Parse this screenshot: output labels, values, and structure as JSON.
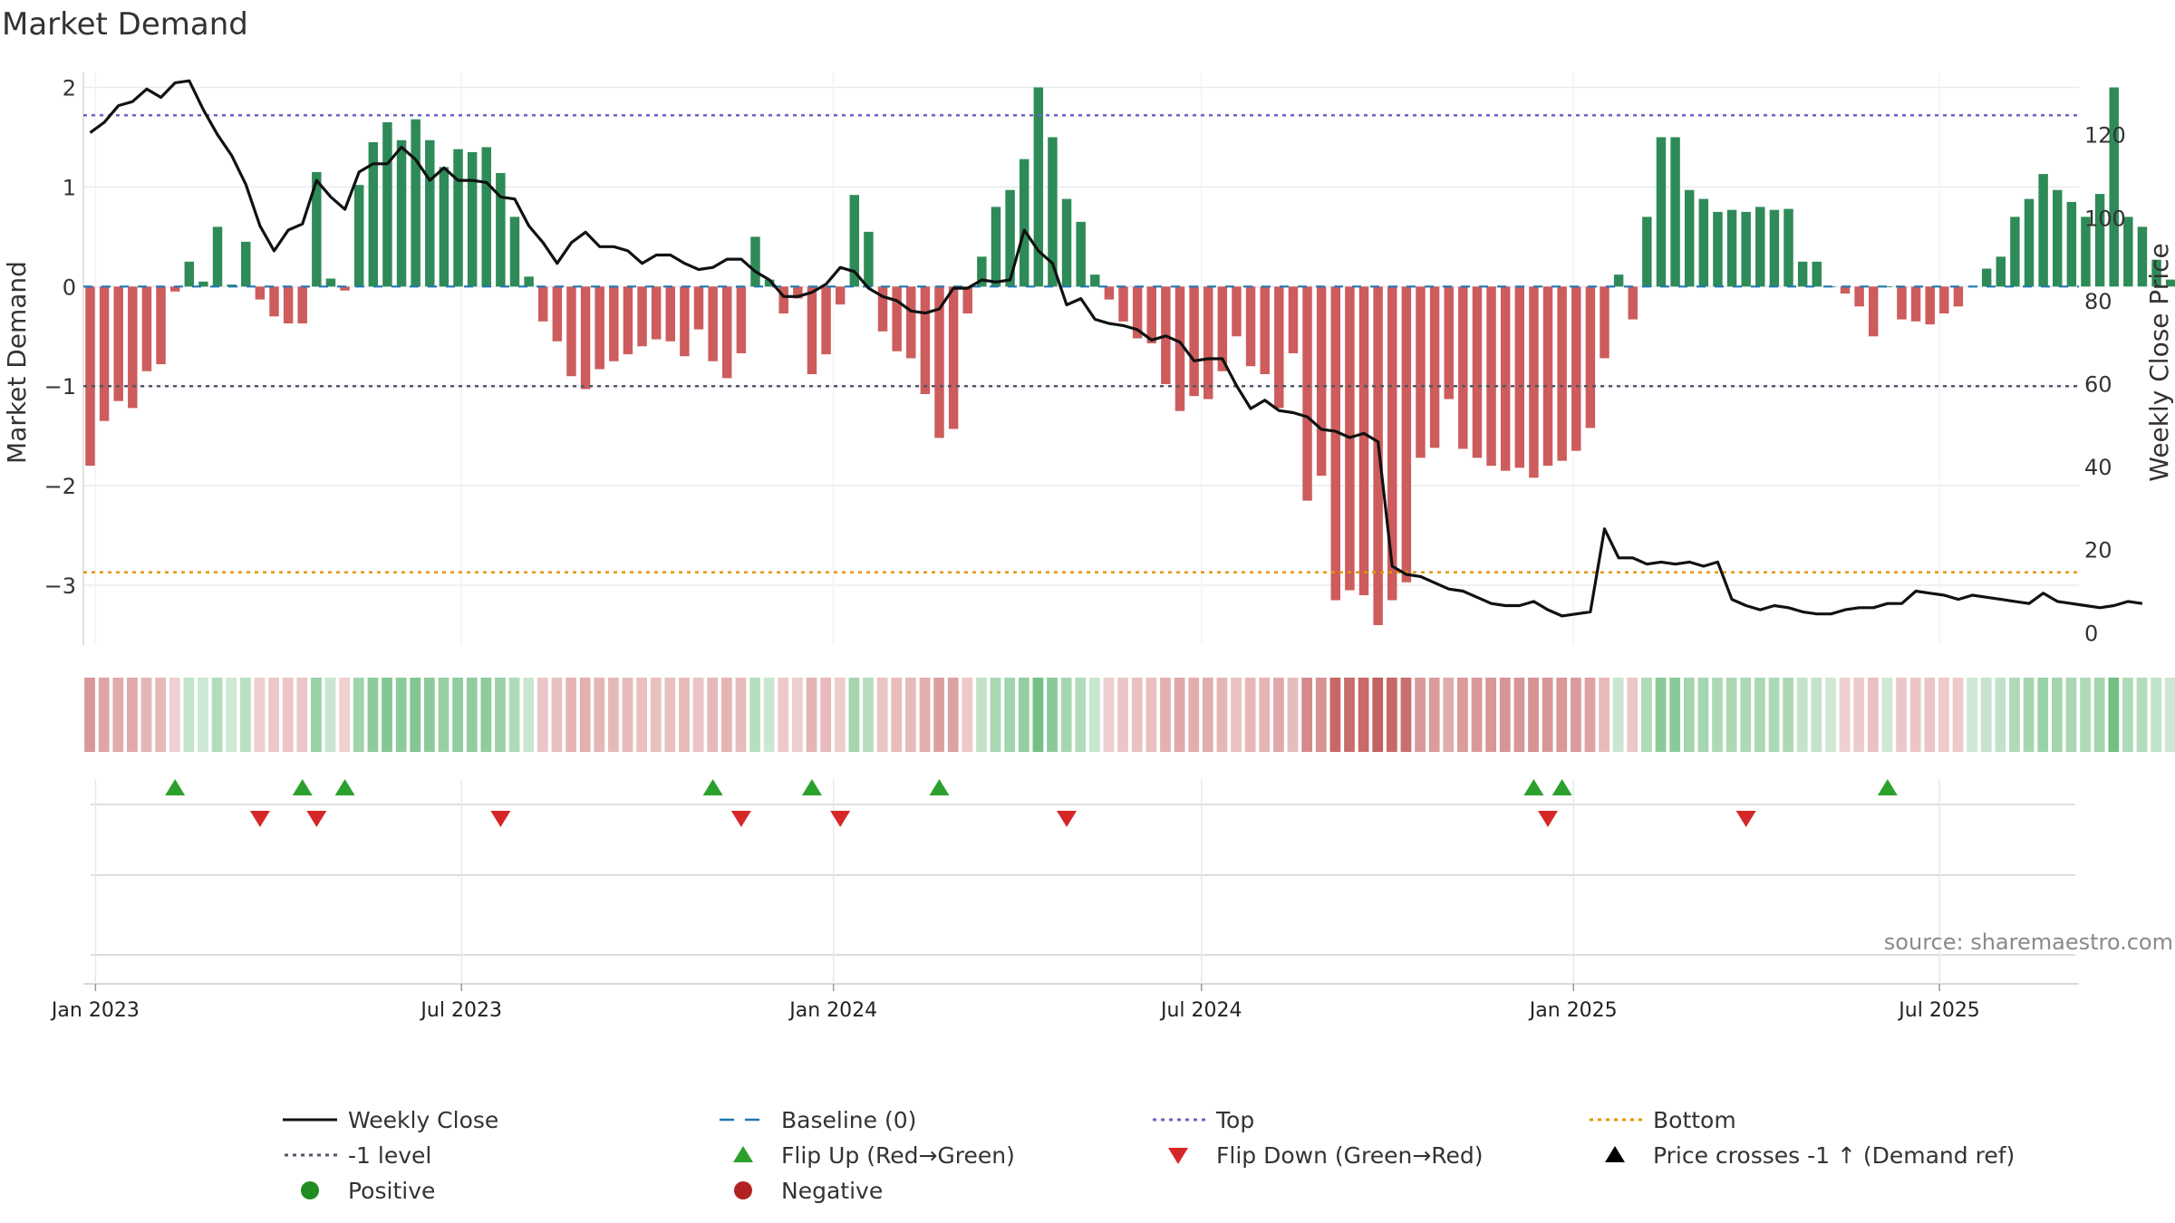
{
  "chart_data": {
    "type": "bar",
    "title": "Market Demand",
    "ylabel_left": "Market Demand",
    "ylabel_right": "Weekly Close Price",
    "source": "source: sharemaestro.com",
    "ylim_left": [
      -3.6,
      2.15
    ],
    "ylim_right": [
      -3,
      135
    ],
    "yticks_left": [
      2,
      1,
      0,
      -1,
      -2,
      -3
    ],
    "ytick_labels_left": [
      "2",
      "1",
      "0",
      "−1",
      "−2",
      "−3"
    ],
    "yticks_right": [
      120,
      100,
      80,
      60,
      40,
      20,
      0
    ],
    "x_range": [
      "2022-12-26",
      "2025-09-08"
    ],
    "x_ticks": [
      {
        "date": "2023-01-01",
        "label": "Jan 2023"
      },
      {
        "date": "2023-07-01",
        "label": "Jul 2023"
      },
      {
        "date": "2024-01-01",
        "label": "Jan 2024"
      },
      {
        "date": "2024-07-01",
        "label": "Jul 2024"
      },
      {
        "date": "2025-01-01",
        "label": "Jan 2025"
      },
      {
        "date": "2025-07-01",
        "label": "Jul 2025"
      }
    ],
    "reference_lines": {
      "top": 1.72,
      "bottom": -2.87,
      "minus_one": -1,
      "baseline": 0
    },
    "start_date": "2022-12-26",
    "demand": [
      -1.8,
      -1.35,
      -1.15,
      -1.22,
      -0.85,
      -0.78,
      -0.05,
      0.25,
      0.05,
      0.6,
      0.02,
      0.45,
      -0.13,
      -0.3,
      -0.37,
      -0.37,
      1.15,
      0.08,
      -0.04,
      1.02,
      1.45,
      1.65,
      1.47,
      1.68,
      1.47,
      1.2,
      1.38,
      1.35,
      1.4,
      1.14,
      0.7,
      0.1,
      -0.35,
      -0.55,
      -0.9,
      -1.03,
      -0.83,
      -0.75,
      -0.68,
      -0.6,
      -0.53,
      -0.55,
      -0.7,
      -0.43,
      -0.75,
      -0.92,
      -0.67,
      0.5,
      0.07,
      -0.27,
      -0.12,
      -0.88,
      -0.68,
      -0.18,
      0.92,
      0.55,
      -0.45,
      -0.65,
      -0.72,
      -1.08,
      -1.52,
      -1.43,
      -0.27,
      0.3,
      0.8,
      0.97,
      1.28,
      2.0,
      1.5,
      0.88,
      0.65,
      0.12,
      -0.13,
      -0.35,
      -0.52,
      -0.57,
      -0.98,
      -1.25,
      -1.1,
      -1.13,
      -0.85,
      -0.5,
      -0.8,
      -0.88,
      -1.22,
      -0.67,
      -2.15,
      -1.9,
      -3.15,
      -3.05,
      -3.1,
      -3.4,
      -3.15,
      -2.97,
      -1.72,
      -1.62,
      -1.13,
      -1.63,
      -1.72,
      -1.8,
      -1.85,
      -1.82,
      -1.92,
      -1.8,
      -1.75,
      -1.65,
      -1.42,
      -0.72,
      0.12,
      -0.33,
      0.7,
      1.5,
      1.5,
      0.97,
      0.88,
      0.75,
      0.77,
      0.75,
      0.8,
      0.77,
      0.78,
      0.25,
      0.25,
      0.0,
      -0.07,
      -0.2,
      -0.5,
      0.0,
      -0.33,
      -0.35,
      -0.38,
      -0.27,
      -0.2,
      0.0,
      0.18,
      0.3,
      0.7,
      0.88,
      1.13,
      0.97,
      0.85,
      0.7,
      0.93,
      2.0,
      0.7,
      0.6,
      0.27,
      0.07,
      0.1,
      0.33,
      0.2
    ],
    "close_pts": [
      [
        0,
        120.5
      ],
      [
        1,
        123
      ],
      [
        2,
        127
      ],
      [
        3,
        128
      ],
      [
        4,
        131
      ],
      [
        5,
        129
      ],
      [
        6,
        132.5
      ],
      [
        7,
        133
      ],
      [
        8,
        126
      ],
      [
        9,
        120
      ],
      [
        10,
        115
      ],
      [
        11,
        108
      ],
      [
        12,
        98
      ],
      [
        13,
        92
      ],
      [
        14,
        97
      ],
      [
        15,
        98.5
      ],
      [
        16,
        109
      ],
      [
        17,
        105
      ],
      [
        18,
        102
      ],
      [
        19,
        111
      ],
      [
        20,
        113
      ],
      [
        21,
        113
      ],
      [
        22,
        117
      ],
      [
        23,
        114
      ],
      [
        24,
        109
      ],
      [
        25,
        112
      ],
      [
        26,
        109
      ],
      [
        27,
        109
      ],
      [
        28,
        108.5
      ],
      [
        29,
        105
      ],
      [
        30,
        104.5
      ],
      [
        31,
        98
      ],
      [
        32,
        94
      ],
      [
        33,
        89
      ],
      [
        34,
        94
      ],
      [
        35,
        96.5
      ],
      [
        36,
        93
      ],
      [
        37,
        93
      ],
      [
        38,
        92
      ],
      [
        39,
        89
      ],
      [
        40,
        91
      ],
      [
        41,
        91
      ],
      [
        42,
        89
      ],
      [
        43,
        87.5
      ],
      [
        44,
        88
      ],
      [
        45,
        90
      ],
      [
        46,
        90
      ],
      [
        47,
        87
      ],
      [
        48,
        85
      ],
      [
        49,
        81
      ],
      [
        50,
        81
      ],
      [
        51,
        82
      ],
      [
        52,
        84
      ],
      [
        53,
        88
      ],
      [
        54,
        87
      ],
      [
        55,
        83
      ],
      [
        56,
        81
      ],
      [
        57,
        80
      ],
      [
        58,
        77.5
      ],
      [
        59,
        77
      ],
      [
        60,
        78
      ],
      [
        61,
        83
      ],
      [
        62,
        83
      ],
      [
        63,
        85
      ],
      [
        64,
        84.5
      ],
      [
        65,
        85
      ],
      [
        66,
        97
      ],
      [
        67,
        92
      ],
      [
        68,
        89
      ],
      [
        69,
        79
      ],
      [
        70,
        80.5
      ],
      [
        71,
        75.5
      ],
      [
        72,
        74.5
      ],
      [
        73,
        74
      ],
      [
        74,
        73
      ],
      [
        75,
        70.5
      ],
      [
        76,
        71.5
      ],
      [
        77,
        70
      ],
      [
        78,
        65.5
      ],
      [
        79,
        66
      ],
      [
        80,
        66
      ],
      [
        81,
        59.5
      ],
      [
        82,
        54
      ],
      [
        83,
        56
      ],
      [
        84,
        53.5
      ],
      [
        85,
        53
      ],
      [
        86,
        52
      ],
      [
        87,
        49
      ],
      [
        88,
        48.5
      ],
      [
        89,
        47
      ],
      [
        90,
        48
      ],
      [
        91,
        46
      ],
      [
        92,
        16
      ],
      [
        93,
        14
      ],
      [
        94,
        13.5
      ],
      [
        95,
        12
      ],
      [
        96,
        10.5
      ],
      [
        97,
        10
      ],
      [
        98,
        8.5
      ],
      [
        99,
        7
      ],
      [
        100,
        6.5
      ],
      [
        101,
        6.5
      ],
      [
        102,
        7.5
      ],
      [
        103,
        5.5
      ],
      [
        104,
        4
      ],
      [
        105,
        4.5
      ],
      [
        106,
        5
      ],
      [
        107,
        25
      ],
      [
        108,
        18
      ],
      [
        109,
        18
      ],
      [
        110,
        16.5
      ],
      [
        111,
        17
      ],
      [
        112,
        16.5
      ],
      [
        113,
        17
      ],
      [
        114,
        16
      ],
      [
        115,
        17
      ],
      [
        116,
        8
      ],
      [
        117,
        6.5
      ],
      [
        118,
        5.5
      ],
      [
        119,
        6.5
      ],
      [
        120,
        6
      ],
      [
        121,
        5
      ],
      [
        122,
        4.5
      ],
      [
        123,
        4.5
      ],
      [
        124,
        5.5
      ],
      [
        125,
        6
      ],
      [
        126,
        6
      ],
      [
        127,
        7
      ],
      [
        128,
        7
      ],
      [
        129,
        10
      ],
      [
        130,
        9.5
      ],
      [
        131,
        9
      ],
      [
        132,
        8
      ],
      [
        133,
        9
      ],
      [
        134,
        8.5
      ],
      [
        135,
        8
      ],
      [
        136,
        7.5
      ],
      [
        137,
        7
      ],
      [
        138,
        9.5
      ],
      [
        139,
        7.5
      ],
      [
        140,
        7
      ],
      [
        141,
        6.5
      ],
      [
        142,
        6
      ],
      [
        143,
        6.5
      ],
      [
        144,
        7.5
      ],
      [
        145,
        7
      ]
    ],
    "flip_up": [
      "2023-02-06",
      "2023-04-10",
      "2023-05-01",
      "2023-10-30",
      "2023-12-18",
      "2024-02-19",
      "2024-12-09",
      "2024-12-23",
      "2025-06-02"
    ],
    "flip_down": [
      "2023-03-20",
      "2023-04-17",
      "2023-07-17",
      "2023-11-13",
      "2024-01-01",
      "2024-04-22",
      "2024-12-16",
      "2025-03-24"
    ],
    "legend": [
      {
        "label": "Weekly Close",
        "symbol": "line-solid",
        "color": "#111111"
      },
      {
        "label": "Baseline (0)",
        "symbol": "line-dash",
        "color": "#1f77b4"
      },
      {
        "label": "Top",
        "symbol": "line-dot",
        "color": "#6b63c9"
      },
      {
        "label": "Bottom",
        "symbol": "line-dot",
        "color": "#e69500"
      },
      {
        "label": "-1 level",
        "symbol": "line-dot",
        "color": "#555566"
      },
      {
        "label": "Flip Up (Red→Green)",
        "symbol": "triangle-up",
        "color": "#2ca02c"
      },
      {
        "label": "Flip Down (Green→Red)",
        "symbol": "triangle-down",
        "color": "#d62728"
      },
      {
        "label": "Price crosses -1 ↑ (Demand ref)",
        "symbol": "triangle-up",
        "color": "#000000"
      },
      {
        "label": "Positive",
        "symbol": "circle",
        "color": "#228b22"
      },
      {
        "label": "Negative",
        "symbol": "circle",
        "color": "#b22222"
      }
    ],
    "colors": {
      "positive": "#2e8b57",
      "negative": "#cd5c5c",
      "price": "#111111",
      "baseline": "#1f77b4",
      "top": "#6b63c9",
      "bottom": "#e69500",
      "minus_one": "#555566",
      "flip_up": "#2ca02c",
      "flip_down": "#d62728",
      "grid": "#e8ecef"
    }
  }
}
